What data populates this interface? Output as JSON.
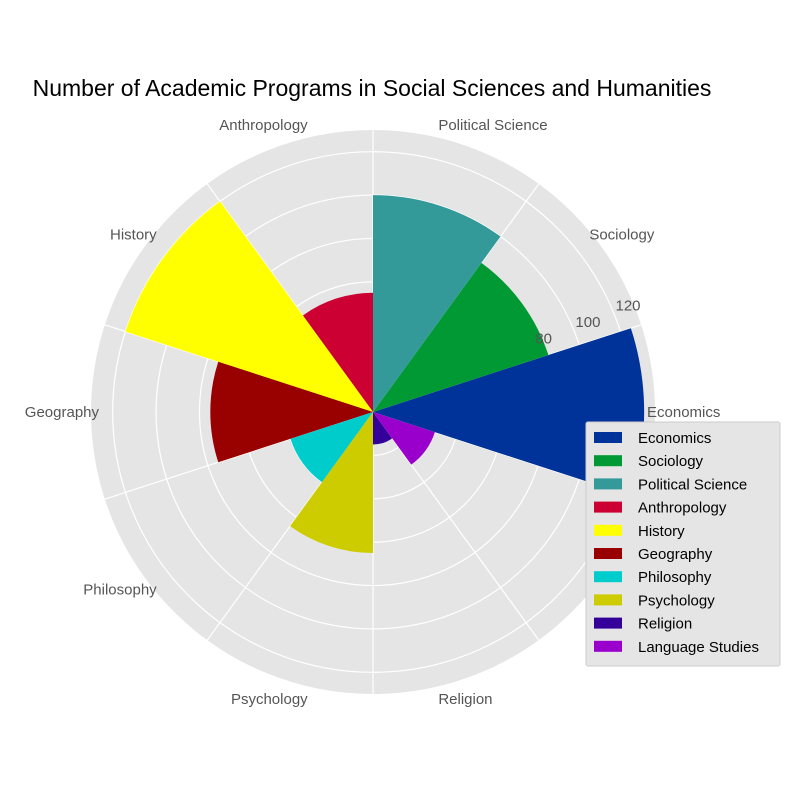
{
  "chart_data": {
    "type": "polar-bar",
    "title": "Number of Academic Programs in Social Sciences and Humanities",
    "categories": [
      "Economics",
      "Sociology",
      "Political Science",
      "Anthropology",
      "History",
      "Geography",
      "Philosophy",
      "Psychology",
      "Religion",
      "Language Studies"
    ],
    "values": [
      125,
      85,
      100,
      55,
      120,
      75,
      40,
      65,
      15,
      30
    ],
    "colors": [
      "#003399",
      "#009933",
      "#339999",
      "#cc0033",
      "#ffff00",
      "#990000",
      "#00cccc",
      "#cccc00",
      "#330099",
      "#9900cc"
    ],
    "rlim": [
      0,
      130
    ],
    "rticks": [
      0,
      20,
      40,
      60,
      80,
      100,
      120
    ],
    "rtick_labels_visible": [
      "80",
      "100",
      "120"
    ],
    "grid": true,
    "legend": {
      "placement": "right",
      "entries": [
        "Economics",
        "Sociology",
        "Political Science",
        "Anthropology",
        "History",
        "Geography",
        "Philosophy",
        "Psychology",
        "Religion",
        "Language Studies"
      ]
    }
  }
}
